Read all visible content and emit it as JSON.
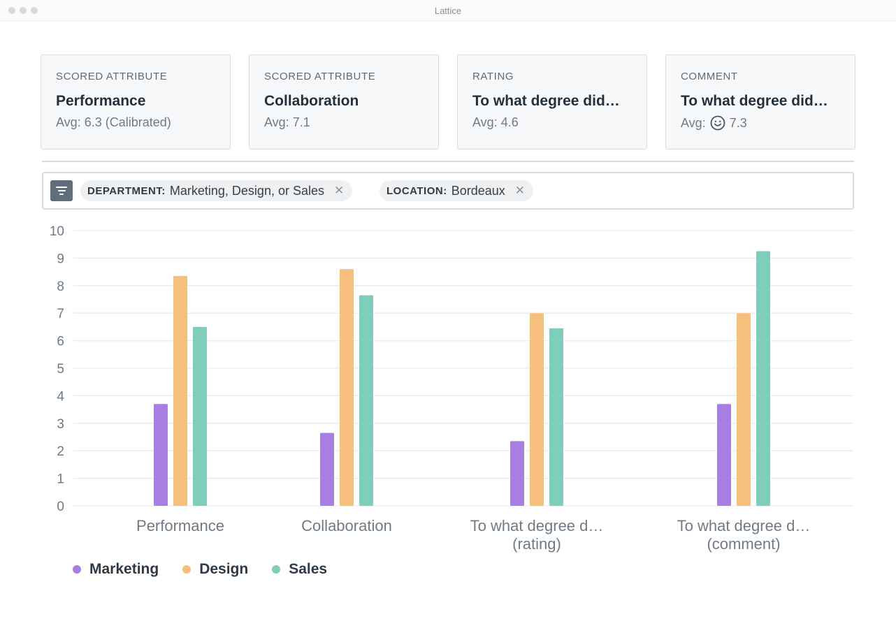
{
  "window": {
    "title": "Lattice"
  },
  "cards": [
    {
      "kind": "SCORED ATTRIBUTE",
      "name": "Performance",
      "avg": "Avg: 6.3 (Calibrated)"
    },
    {
      "kind": "SCORED ATTRIBUTE",
      "name": "Collaboration",
      "avg": "Avg: 7.1"
    },
    {
      "kind": "RATING",
      "name": "To what degree did…",
      "avg": "Avg: 4.6"
    },
    {
      "kind": "COMMENT",
      "name": "To what degree did…",
      "avg_label": "Avg:",
      "avg_icon": "smiley-face-icon",
      "avg_value": "7.3"
    }
  ],
  "filters": [
    {
      "key": "DEPARTMENT:",
      "value": "Marketing, Design, or Sales",
      "remove_icon": "close-icon"
    },
    {
      "key": "LOCATION:",
      "value": "Bordeaux",
      "remove_icon": "close-icon"
    }
  ],
  "filter_button_icon": "filter-icon",
  "colors": {
    "marketing": "#a67fe1",
    "design": "#f5c07c",
    "sales": "#7fcdbb",
    "grid": "#ebedef"
  },
  "chart_data": {
    "type": "bar",
    "categories": [
      [
        "Performance"
      ],
      [
        "Collaboration"
      ],
      [
        "To what degree d…",
        "(rating)"
      ],
      [
        "To what degree d…",
        "(comment)"
      ]
    ],
    "series": [
      {
        "name": "Marketing",
        "color": "#a67fe1",
        "values": [
          3.7,
          2.65,
          2.35,
          3.7
        ]
      },
      {
        "name": "Design",
        "color": "#f5c07c",
        "values": [
          8.35,
          8.6,
          7.0,
          7.0
        ]
      },
      {
        "name": "Sales",
        "color": "#7fcdbb",
        "values": [
          6.5,
          7.65,
          6.45,
          9.25
        ]
      }
    ],
    "ylim": [
      0,
      10
    ],
    "yticks": [
      0,
      1,
      2,
      3,
      4,
      5,
      6,
      7,
      8,
      9,
      10
    ],
    "grid": true,
    "legend": "bottom-left"
  }
}
